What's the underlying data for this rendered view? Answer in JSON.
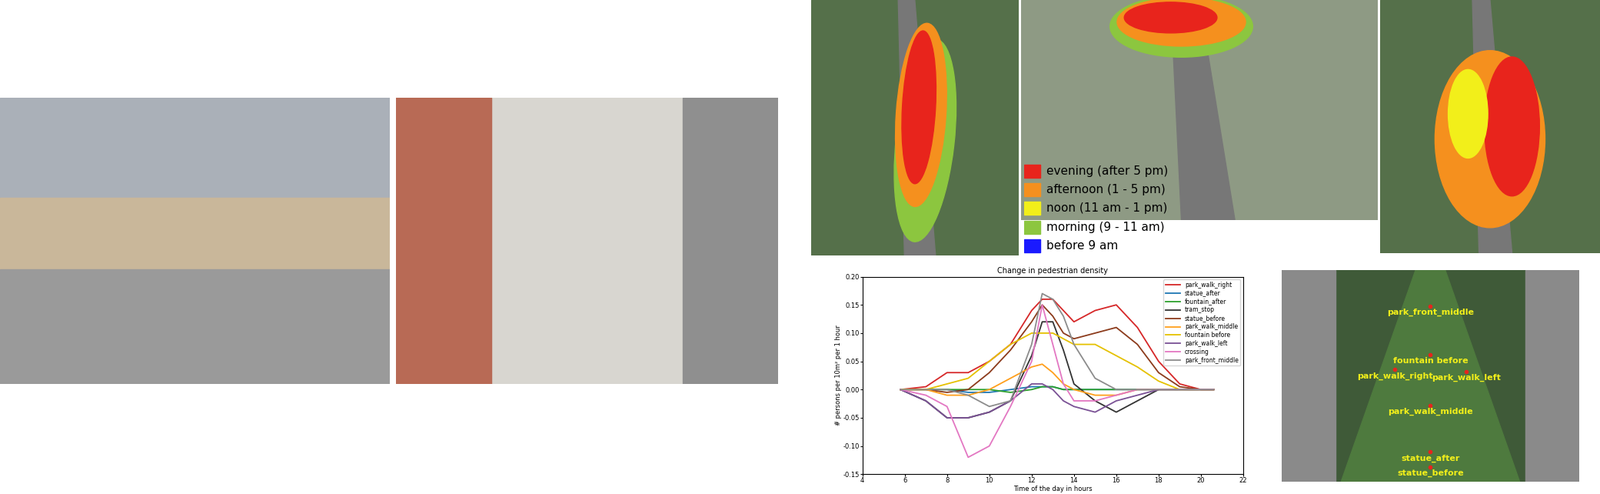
{
  "chart_data": {
    "type": "line",
    "title": "Change in pedestrian density",
    "x_label": "Time of the day in hours",
    "y_label": "# persons per 10m² per 1 hour",
    "x": [
      5.8,
      7,
      8,
      9,
      10,
      11,
      12,
      12.5,
      13,
      13.5,
      14,
      15,
      16,
      17,
      18,
      19,
      20,
      20.6
    ],
    "series": [
      {
        "name": "park_walk_right",
        "color": "#d62728",
        "values": [
          0,
          0.005,
          0.03,
          0.03,
          0.05,
          0.08,
          0.14,
          0.16,
          0.16,
          0.14,
          0.12,
          0.14,
          0.15,
          0.11,
          0.05,
          0.01,
          0,
          0
        ]
      },
      {
        "name": "statue_after",
        "color": "#1f77b4",
        "values": [
          0,
          0,
          0,
          -0.005,
          -0.005,
          0,
          0.005,
          0.005,
          0.005,
          0,
          0,
          0,
          0,
          0,
          0,
          0,
          0,
          0
        ]
      },
      {
        "name": "fountain_after",
        "color": "#2ca02c",
        "values": [
          0,
          0,
          0,
          0,
          0,
          -0.005,
          0,
          0.005,
          0.005,
          0,
          0,
          0,
          0,
          0,
          0,
          0,
          0,
          0
        ]
      },
      {
        "name": "tram_stop",
        "color": "#333333",
        "values": [
          0,
          -0.02,
          -0.05,
          -0.05,
          -0.04,
          -0.02,
          0.06,
          0.12,
          0.12,
          0.07,
          0.01,
          -0.02,
          -0.04,
          -0.02,
          0,
          0,
          0,
          0
        ]
      },
      {
        "name": "statue_before",
        "color": "#8c3b1c",
        "values": [
          0,
          0,
          -0.005,
          0,
          0.03,
          0.07,
          0.12,
          0.15,
          0.13,
          0.1,
          0.09,
          0.1,
          0.11,
          0.08,
          0.03,
          0.005,
          0,
          0
        ]
      },
      {
        "name": "park_walk_middle",
        "color": "#ff9f1c",
        "values": [
          0,
          0,
          -0.01,
          -0.01,
          0,
          0.02,
          0.04,
          0.045,
          0.03,
          0.01,
          0,
          -0.01,
          -0.01,
          0,
          0,
          0,
          0,
          0
        ]
      },
      {
        "name": "fountain before",
        "color": "#e5c100",
        "values": [
          0,
          0,
          0.01,
          0.02,
          0.05,
          0.08,
          0.1,
          0.1,
          0.1,
          0.09,
          0.08,
          0.08,
          0.06,
          0.04,
          0.015,
          0,
          0,
          0
        ]
      },
      {
        "name": "park_walk_left",
        "color": "#7a5195",
        "values": [
          0,
          -0.02,
          -0.05,
          -0.05,
          -0.04,
          -0.02,
          0.01,
          0.01,
          0,
          -0.02,
          -0.03,
          -0.04,
          -0.02,
          -0.01,
          0,
          0,
          0,
          0
        ]
      },
      {
        "name": "crossing",
        "color": "#e377c2",
        "values": [
          0,
          -0.01,
          -0.03,
          -0.12,
          -0.1,
          -0.03,
          0.05,
          0.15,
          0.08,
          0.01,
          -0.02,
          -0.02,
          -0.01,
          0,
          0,
          0,
          0,
          0
        ]
      },
      {
        "name": "park_front_middle",
        "color": "#8c8c8c",
        "values": [
          0,
          0,
          0,
          -0.01,
          -0.03,
          -0.02,
          0.08,
          0.17,
          0.16,
          0.13,
          0.08,
          0.02,
          0,
          0,
          0,
          0,
          0,
          0
        ]
      }
    ],
    "xlim": [
      4,
      22
    ],
    "xticks": [
      4,
      6,
      8,
      10,
      12,
      14,
      16,
      18,
      20,
      22
    ],
    "ylim": [
      -0.15,
      0.2
    ],
    "yticks": [
      -0.15,
      {
        "value": -0.1,
        "label": "-0.10"
      },
      -0.05,
      {
        "value": 0.0,
        "label": "0.00"
      },
      0.05,
      {
        "value": 0.1,
        "label": "0.10"
      },
      0.15,
      {
        "value": 0.2,
        "label": "0.20"
      }
    ],
    "legend": "upper right",
    "grid": false
  },
  "time_legend": [
    {
      "label": "evening (after 5 pm)",
      "color": "#e8241c"
    },
    {
      "label": "afternoon (1 - 5 pm)",
      "color": "#f5901e"
    },
    {
      "label": "noon (11 am - 1 pm)",
      "color": "#f2ef1a"
    },
    {
      "label": "morning (9 - 11 am)",
      "color": "#8cc63f"
    },
    {
      "label": "before 9 am",
      "color": "#1a1aff"
    }
  ],
  "map_labels": [
    "park_front_middle",
    "fountain before",
    "park_walk_right",
    "park_walk_left",
    "park_walk_middle",
    "statue_after",
    "statue_before"
  ]
}
